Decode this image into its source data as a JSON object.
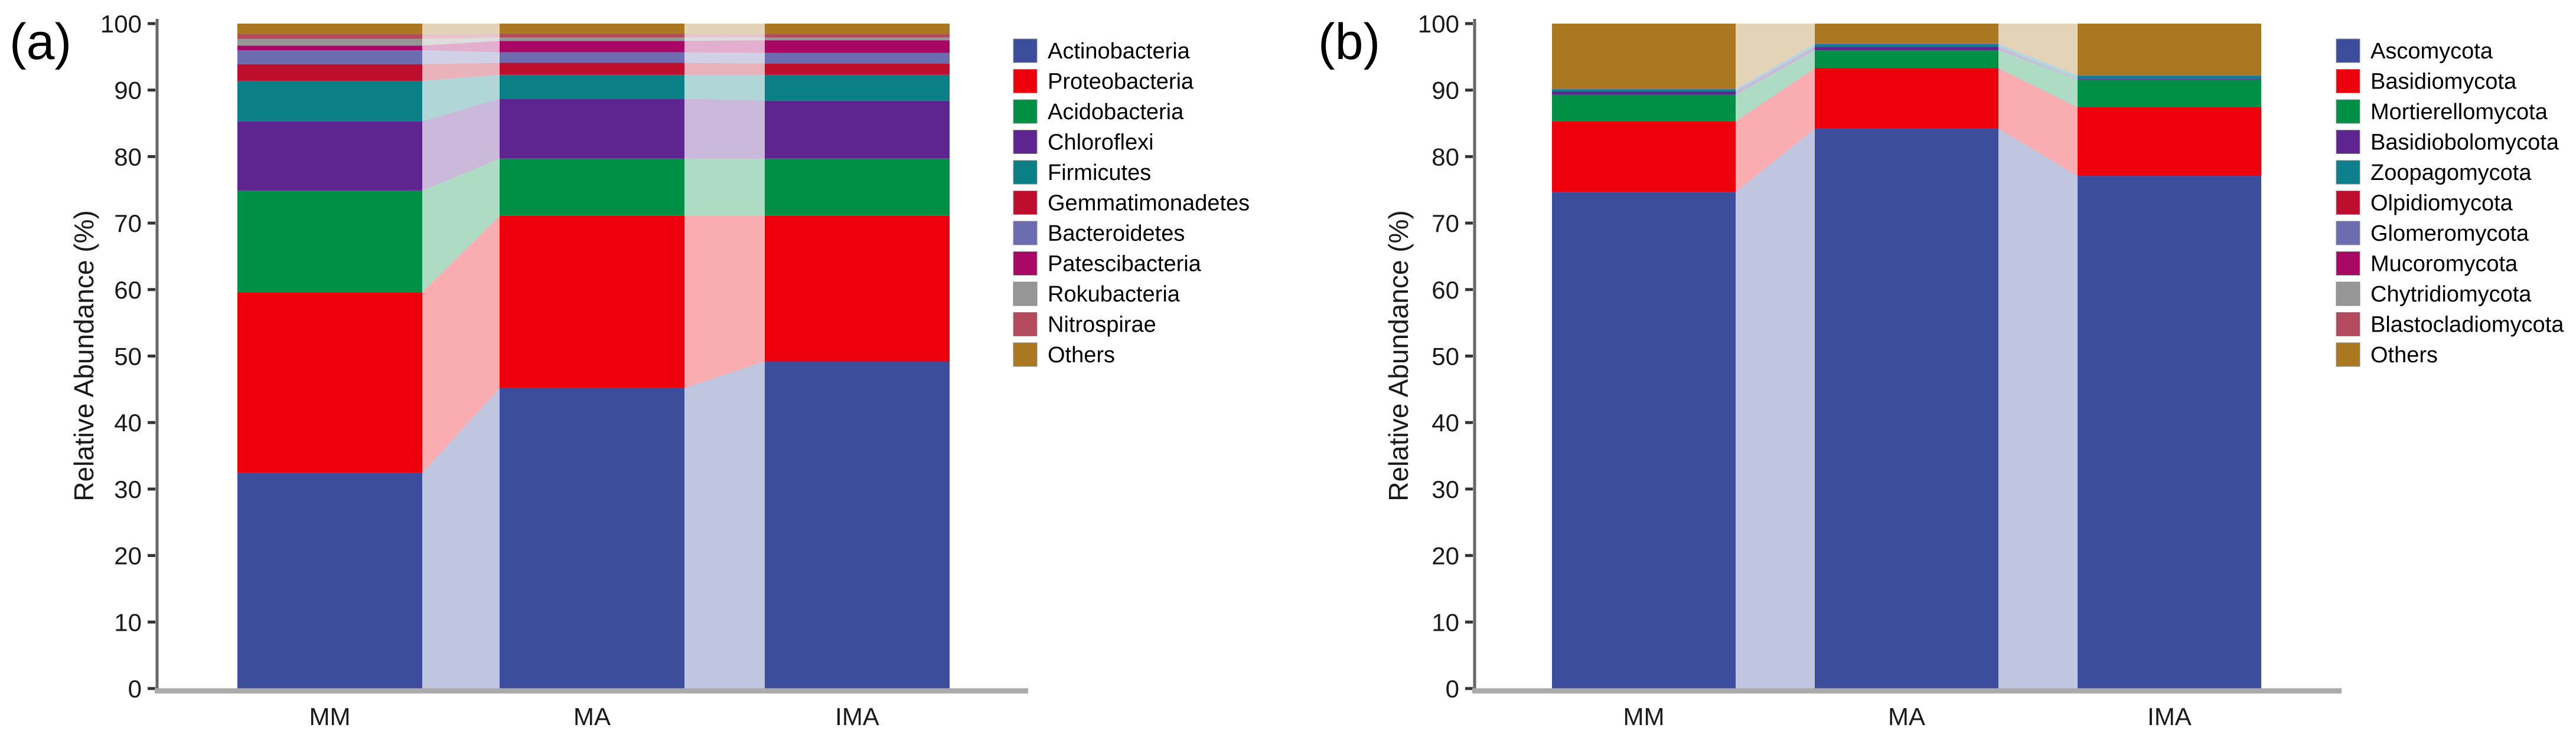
{
  "figure": {
    "background": "#ffffff",
    "axis_color": "#666666",
    "baseline_color": "#ababab",
    "flow_opacity": 0.32
  },
  "chart_data": [
    {
      "type": "bar",
      "variant": "stacked-percent-with-flows",
      "panel_label": "(a)",
      "ylabel": "Relative Abundance (%)",
      "xlabel": "",
      "ylim": [
        0,
        100
      ],
      "yticks": [
        0,
        10,
        20,
        30,
        40,
        50,
        60,
        70,
        80,
        90,
        100
      ],
      "categories": [
        "MM",
        "MA",
        "IMA"
      ],
      "legend_position": "right",
      "series": [
        {
          "name": "Actinobacteria",
          "color": "#3B4D9B",
          "values": [
            32.4,
            45.2,
            49.2
          ]
        },
        {
          "name": "Proteobacteria",
          "color": "#ED000C",
          "values": [
            27.2,
            25.9,
            21.9
          ]
        },
        {
          "name": "Acidobacteria",
          "color": "#009045",
          "values": [
            15.3,
            8.6,
            8.6
          ]
        },
        {
          "name": "Chloroflexi",
          "color": "#5E2590",
          "values": [
            10.4,
            9.0,
            8.7
          ]
        },
        {
          "name": "Firmicutes",
          "color": "#0B7F86",
          "values": [
            6.1,
            3.6,
            3.9
          ]
        },
        {
          "name": "Gemmatimonadetes",
          "color": "#BE0E2D",
          "values": [
            2.5,
            1.8,
            1.7
          ]
        },
        {
          "name": "Bacteroidetes",
          "color": "#6C6DB0",
          "values": [
            2.1,
            1.6,
            1.6
          ]
        },
        {
          "name": "Patescibacteria",
          "color": "#A80766",
          "values": [
            0.7,
            1.7,
            1.9
          ]
        },
        {
          "name": "Rokubacteria",
          "color": "#969696",
          "values": [
            1.0,
            0.5,
            0.4
          ]
        },
        {
          "name": "Nitrospirae",
          "color": "#B34A5E",
          "values": [
            0.7,
            0.6,
            0.5
          ]
        },
        {
          "name": "Others",
          "color": "#A97821",
          "values": [
            1.6,
            1.5,
            1.6
          ]
        }
      ]
    },
    {
      "type": "bar",
      "variant": "stacked-percent-with-flows",
      "panel_label": "(b)",
      "ylabel": "Relative Abundance (%)",
      "xlabel": "",
      "ylim": [
        0,
        100
      ],
      "yticks": [
        0,
        10,
        20,
        30,
        40,
        50,
        60,
        70,
        80,
        90,
        100
      ],
      "categories": [
        "MM",
        "MA",
        "IMA"
      ],
      "legend_position": "right",
      "series": [
        {
          "name": "Ascomycota",
          "color": "#3B4D9B",
          "values": [
            74.7,
            84.2,
            77.1
          ]
        },
        {
          "name": "Basidiomycota",
          "color": "#ED000C",
          "values": [
            10.6,
            9.1,
            10.3
          ]
        },
        {
          "name": "Mortierellomycota",
          "color": "#009045",
          "values": [
            4.0,
            2.7,
            4.2
          ]
        },
        {
          "name": "Basidiobolomycota",
          "color": "#5E2590",
          "values": [
            0.5,
            0.5,
            0.05
          ]
        },
        {
          "name": "Zoopagomycota",
          "color": "#0E7F8C",
          "values": [
            0.3,
            0.4,
            0.5
          ]
        },
        {
          "name": "Olpidiomycota",
          "color": "#BE0E2D",
          "values": [
            0.0,
            0.0,
            0.0
          ]
        },
        {
          "name": "Glomeromycota",
          "color": "#6C6DB0",
          "values": [
            0.1,
            0.1,
            0.1
          ]
        },
        {
          "name": "Mucoromycota",
          "color": "#A80766",
          "values": [
            0.0,
            0.0,
            0.0
          ]
        },
        {
          "name": "Chytridiomycota",
          "color": "#969696",
          "values": [
            0.0,
            0.0,
            0.0
          ]
        },
        {
          "name": "Blastocladiomycota",
          "color": "#B34A5E",
          "values": [
            0.0,
            0.0,
            0.0
          ]
        },
        {
          "name": "Others",
          "color": "#A97821",
          "values": [
            9.8,
            3.0,
            7.75
          ]
        }
      ]
    }
  ]
}
